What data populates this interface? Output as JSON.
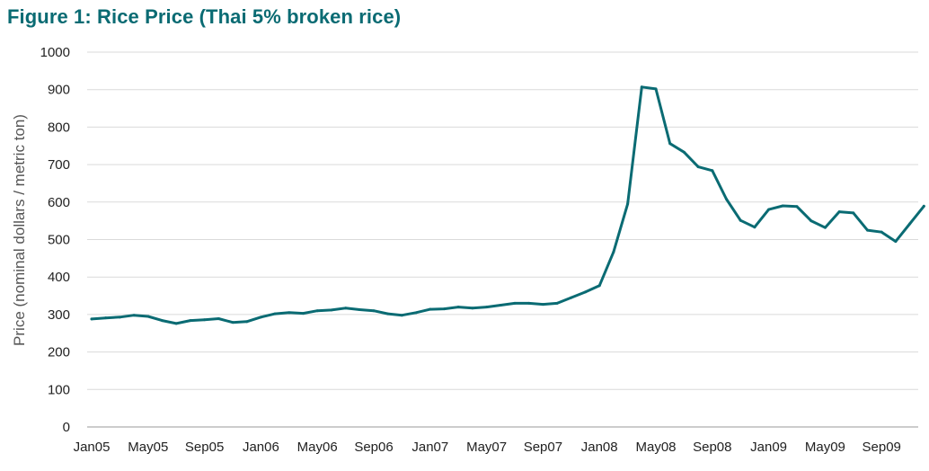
{
  "title": "Figure 1: Rice Price (Thai 5% broken rice)",
  "chart_data": {
    "type": "line",
    "title": "Figure 1: Rice Price (Thai 5% broken rice)",
    "xlabel": "",
    "ylabel": "Price (nominal dollars / metric ton)",
    "ylim": [
      0,
      1000
    ],
    "yticks": [
      0,
      100,
      200,
      300,
      400,
      500,
      600,
      700,
      800,
      900,
      1000
    ],
    "xtick_labels": [
      "Jan05",
      "May05",
      "Sep05",
      "Jan06",
      "May06",
      "Sep06",
      "Jan07",
      "May07",
      "Sep07",
      "Jan08",
      "May08",
      "Sep08",
      "Jan09",
      "May09",
      "Sep09"
    ],
    "grid": true,
    "legend": "none",
    "line_color": "#0a6b73",
    "x": [
      "Jan05",
      "Feb05",
      "Mar05",
      "Apr05",
      "May05",
      "Jun05",
      "Jul05",
      "Aug05",
      "Sep05",
      "Oct05",
      "Nov05",
      "Dec05",
      "Jan06",
      "Feb06",
      "Mar06",
      "Apr06",
      "May06",
      "Jun06",
      "Jul06",
      "Aug06",
      "Sep06",
      "Oct06",
      "Nov06",
      "Dec06",
      "Jan07",
      "Feb07",
      "Mar07",
      "Apr07",
      "May07",
      "Jun07",
      "Jul07",
      "Aug07",
      "Sep07",
      "Oct07",
      "Nov07",
      "Dec07",
      "Jan08",
      "Feb08",
      "Mar08",
      "Apr08",
      "May08",
      "Jun08",
      "Jul08",
      "Aug08",
      "Sep08",
      "Oct08",
      "Nov08",
      "Dec08",
      "Jan09",
      "Feb09",
      "Mar09",
      "Apr09",
      "May09",
      "Jun09",
      "Jul09",
      "Aug09",
      "Sep09",
      "Oct09",
      "Nov09",
      "Dec09"
    ],
    "values": [
      288,
      291,
      293,
      298,
      295,
      284,
      276,
      284,
      286,
      289,
      279,
      281,
      293,
      302,
      305,
      303,
      310,
      312,
      317,
      313,
      310,
      302,
      298,
      305,
      314,
      315,
      320,
      317,
      320,
      325,
      330,
      330,
      327,
      330,
      345,
      360,
      377,
      467,
      595,
      907,
      902,
      756,
      733,
      694,
      684,
      608,
      551,
      533,
      580,
      590,
      588,
      550,
      532,
      574,
      571,
      525,
      520,
      495,
      542,
      589
    ]
  }
}
